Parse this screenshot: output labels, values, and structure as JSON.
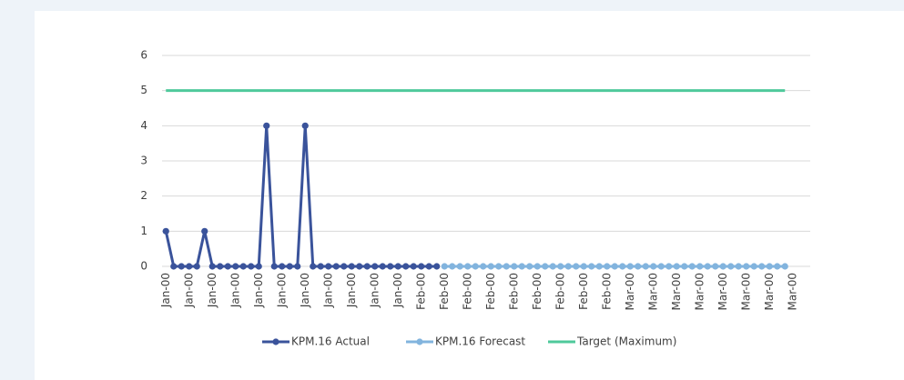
{
  "chart_data": {
    "type": "line",
    "categories": [
      "Jan-00",
      null,
      null,
      "Jan-00",
      null,
      null,
      "Jan-00",
      null,
      null,
      "Jan-00",
      null,
      null,
      "Jan-00",
      null,
      null,
      "Jan-00",
      null,
      null,
      "Jan-00",
      null,
      null,
      "Jan-00",
      null,
      null,
      "Jan-00",
      null,
      null,
      "Jan-00",
      null,
      null,
      "Jan-00",
      null,
      null,
      "Feb-00",
      null,
      null,
      "Feb-00",
      null,
      null,
      "Feb-00",
      null,
      null,
      "Feb-00",
      null,
      null,
      "Feb-00",
      null,
      null,
      "Feb-00",
      null,
      null,
      "Feb-00",
      null,
      null,
      "Feb-00",
      null,
      null,
      "Feb-00",
      null,
      null,
      "Mar-00",
      null,
      null,
      "Mar-00",
      null,
      null,
      "Mar-00",
      null,
      null,
      "Mar-00",
      null,
      null,
      "Mar-00",
      null,
      null,
      "Mar-00",
      null,
      null,
      "Mar-00",
      null,
      null,
      "Mar-00"
    ],
    "series": [
      {
        "name": "KPM.16 Actual",
        "color": "#3a539b",
        "marker": true,
        "values": [
          1,
          0,
          0,
          0,
          0,
          1,
          0,
          0,
          0,
          0,
          0,
          0,
          0,
          4,
          0,
          0,
          0,
          0,
          4,
          0,
          0,
          0,
          0,
          0,
          0,
          0,
          0,
          0,
          0,
          0,
          0,
          0,
          0,
          0,
          0,
          0,
          null,
          null,
          null,
          null,
          null,
          null,
          null,
          null,
          null,
          null,
          null,
          null,
          null,
          null,
          null,
          null,
          null,
          null,
          null,
          null,
          null,
          null,
          null,
          null,
          null,
          null,
          null,
          null,
          null,
          null,
          null,
          null,
          null,
          null,
          null,
          null,
          null,
          null,
          null,
          null,
          null,
          null,
          null,
          null,
          null,
          null
        ]
      },
      {
        "name": "KPM.16 Forecast",
        "color": "#82b4de",
        "marker": true,
        "values": [
          null,
          null,
          null,
          null,
          null,
          null,
          null,
          null,
          null,
          null,
          null,
          null,
          null,
          null,
          null,
          null,
          null,
          null,
          null,
          null,
          null,
          null,
          null,
          null,
          null,
          null,
          null,
          null,
          null,
          null,
          null,
          null,
          null,
          null,
          null,
          null,
          0,
          0,
          0,
          0,
          0,
          0,
          0,
          0,
          0,
          0,
          0,
          0,
          0,
          0,
          0,
          0,
          0,
          0,
          0,
          0,
          0,
          0,
          0,
          0,
          0,
          0,
          0,
          0,
          0,
          0,
          0,
          0,
          0,
          0,
          0,
          0,
          0,
          0,
          0,
          0,
          0,
          0,
          0,
          0,
          0,
          null
        ]
      },
      {
        "name": "Target (Maximum)",
        "color": "#4fc99b",
        "marker": false,
        "values": [
          5,
          5,
          5,
          5,
          5,
          5,
          5,
          5,
          5,
          5,
          5,
          5,
          5,
          5,
          5,
          5,
          5,
          5,
          5,
          5,
          5,
          5,
          5,
          5,
          5,
          5,
          5,
          5,
          5,
          5,
          5,
          5,
          5,
          5,
          5,
          5,
          5,
          5,
          5,
          5,
          5,
          5,
          5,
          5,
          5,
          5,
          5,
          5,
          5,
          5,
          5,
          5,
          5,
          5,
          5,
          5,
          5,
          5,
          5,
          5,
          5,
          5,
          5,
          5,
          5,
          5,
          5,
          5,
          5,
          5,
          5,
          5,
          5,
          5,
          5,
          5,
          5,
          5,
          5,
          5,
          5,
          null
        ]
      }
    ],
    "ylim": [
      0,
      6
    ],
    "yticks": [
      0,
      1,
      2,
      3,
      4,
      5,
      6
    ],
    "grid": true,
    "legend": "bottom"
  }
}
